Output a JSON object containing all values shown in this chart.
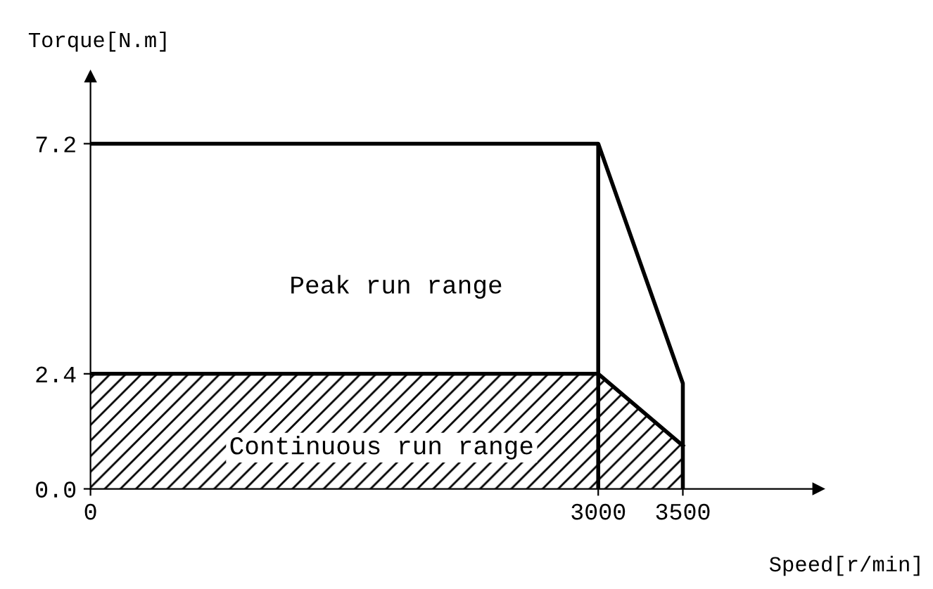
{
  "chart_data": {
    "type": "line",
    "xlabel": "Speed[r/min]",
    "ylabel": "Torque[N.m]",
    "xlim": [
      0,
      4300
    ],
    "ylim": [
      0,
      8.6
    ],
    "xticks": [
      0,
      3000,
      3500
    ],
    "yticks": [
      {
        "value": 0,
        "label": "0.0"
      },
      {
        "value": 2.4,
        "label": "2.4"
      },
      {
        "value": 7.2,
        "label": "7.2"
      }
    ],
    "series": [
      {
        "type": "area",
        "color": "#000000",
        "x": [
          0,
          3000,
          3500
        ],
        "values": [
          2.4,
          2.4,
          0.9
        ]
      },
      {
        "color": "#000000",
        "x": [
          0,
          3000,
          3500,
          3500
        ],
        "values": [
          7.2,
          7.2,
          2.2,
          0
        ]
      }
    ],
    "ref_lines": [
      {
        "axis": "x",
        "value": 3000,
        "color": "#000000"
      }
    ],
    "annotations": [
      "Peak run range",
      "Continuous run range"
    ],
    "grid": false,
    "legend": false
  }
}
